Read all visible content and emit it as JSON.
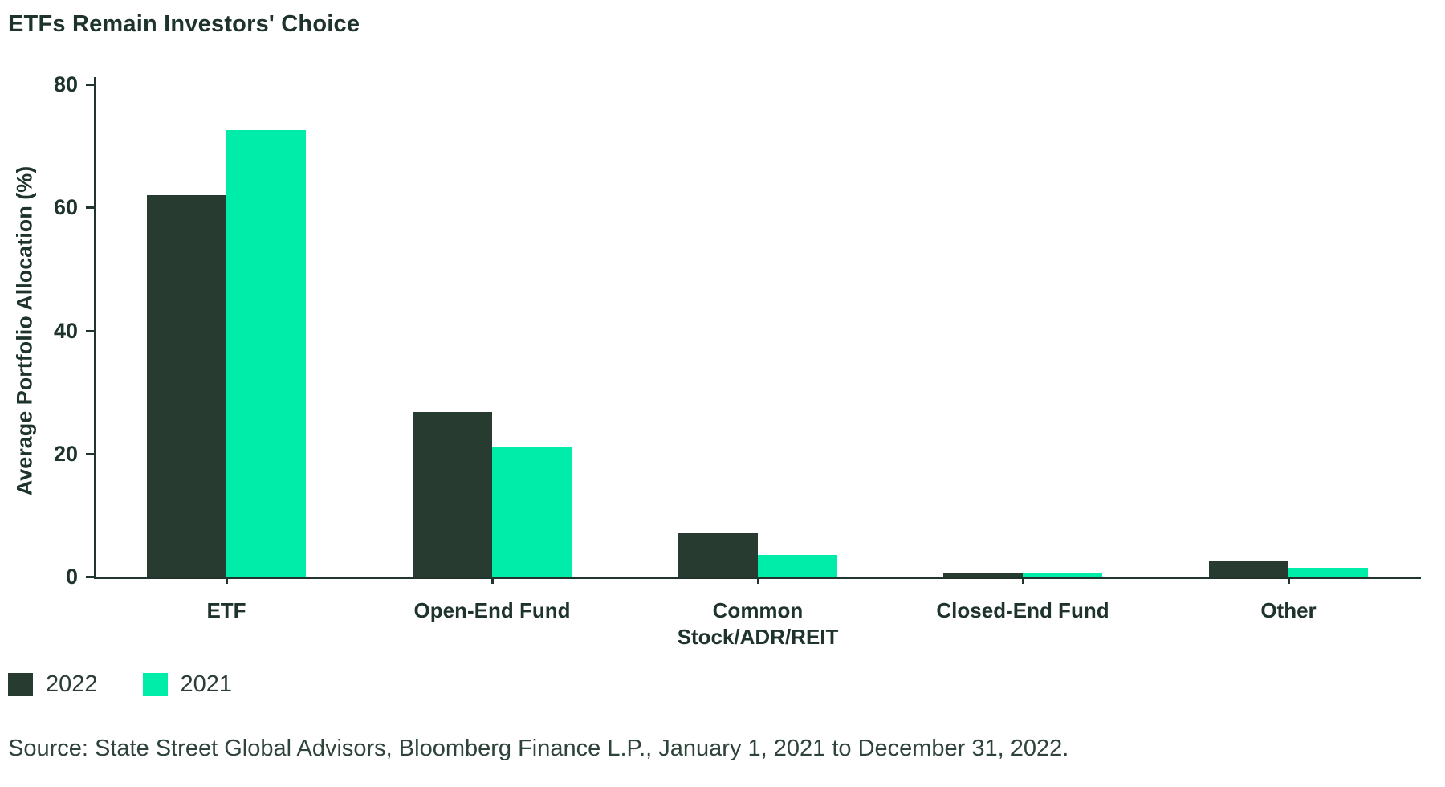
{
  "page": {
    "source": "Source: State Street Global Advisors, Bloomberg Finance L.P., January 1, 2021 to December 31, 2022."
  },
  "colors": {
    "series_2022": "#283B31",
    "series_2021": "#00EDA9",
    "axis": "#22352C",
    "text": "#1E332B",
    "background": "#FFFFFF"
  },
  "chart_data": {
    "type": "bar",
    "title": "ETFs Remain Investors' Choice",
    "categories": [
      "ETF",
      "Open-End Fund",
      "Common Stock/ADR/REIT",
      "Closed-End Fund",
      "Other"
    ],
    "category_display": [
      "ETF",
      "Open-End Fund",
      "Common\nStock/ADR/REIT",
      "Closed-End Fund",
      "Other"
    ],
    "series": [
      {
        "name": "2022",
        "color": "#283B31",
        "values": [
          62,
          26.7,
          7,
          0.7,
          2.5
        ]
      },
      {
        "name": "2021",
        "color": "#00EDA9",
        "values": [
          72.5,
          21,
          3.5,
          0.5,
          1.5
        ]
      }
    ],
    "xlabel": "",
    "ylabel": "Average Portfolio Allocation (%)",
    "ylim": [
      0,
      80
    ],
    "yticks": [
      0,
      20,
      40,
      60,
      80
    ],
    "unit": "%",
    "grid": false,
    "legend_position": "bottom-left",
    "legend_labels": [
      "2022",
      "2021"
    ]
  }
}
